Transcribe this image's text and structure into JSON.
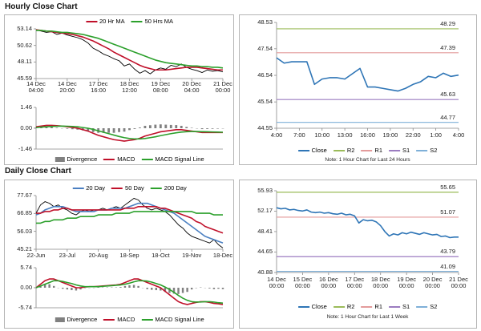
{
  "headings": [
    "Hourly Close Chart",
    "Daily Close Chart"
  ],
  "chart_data": [
    {
      "type": "line",
      "legend": "top",
      "categories": [
        "14 Dec\n04:00",
        null,
        null,
        null,
        null,
        null,
        "14 Dec\n20:00",
        null,
        null,
        null,
        null,
        null,
        "17 Dec\n16:00",
        null,
        null,
        null,
        null,
        null,
        "18 Dec\n12:00",
        null,
        null,
        null,
        null,
        null,
        "19 Dec\n08:00",
        null,
        null,
        null,
        null,
        null,
        "20 Dec\n04:00",
        null,
        null,
        null,
        null,
        null,
        "21 Dec\n00:00"
      ],
      "ylim": [
        45.59,
        53.14
      ],
      "yticks": [
        45.59,
        48.11,
        50.62,
        53.14
      ],
      "series": [
        {
          "color": "#000000",
          "values": [
            53.0,
            52.8,
            52.6,
            52.7,
            52.3,
            52.5,
            52.2,
            52.0,
            51.8,
            51.5,
            51.0,
            50.2,
            49.8,
            49.3,
            49.0,
            48.6,
            48.3,
            47.5,
            47.8,
            47.0,
            46.4,
            46.8,
            46.3,
            46.9,
            47.2,
            47.0,
            47.6,
            47.4,
            47.8,
            47.3,
            47.0,
            46.8,
            46.5,
            46.9,
            46.7,
            46.8,
            46.6
          ]
        },
        {
          "name": "20 Hr MA",
          "color": "#c0102a",
          "values": [
            53.0,
            52.9,
            52.8,
            52.7,
            52.6,
            52.5,
            52.4,
            52.3,
            52.1,
            51.9,
            51.6,
            51.3,
            50.9,
            50.5,
            50.1,
            49.6,
            49.2,
            48.8,
            48.4,
            48.0,
            47.6,
            47.3,
            47.1,
            46.9,
            46.9,
            46.9,
            47.0,
            47.1,
            47.2,
            47.3,
            47.3,
            47.3,
            47.2,
            47.1,
            47.0,
            46.9,
            46.9
          ]
        },
        {
          "name": "50 Hrs MA",
          "color": "#2ca02c",
          "values": [
            52.9,
            52.9,
            52.8,
            52.8,
            52.7,
            52.6,
            52.6,
            52.5,
            52.4,
            52.3,
            52.1,
            51.9,
            51.7,
            51.4,
            51.1,
            50.8,
            50.5,
            50.2,
            49.9,
            49.6,
            49.3,
            49.0,
            48.7,
            48.4,
            48.2,
            48.0,
            47.9,
            47.8,
            47.7,
            47.6,
            47.5,
            47.5,
            47.4,
            47.4,
            47.3,
            47.3,
            47.2
          ]
        }
      ]
    },
    {
      "type": "macd",
      "legend": "bottom",
      "ylim": [
        -1.46,
        1.46
      ],
      "yticks": [
        -1.46,
        {
          "value": 0,
          "label": "0.00"
        },
        1.46
      ],
      "series": [
        {
          "name": "Divergence",
          "color": "#808080",
          "style": "bar",
          "values": [
            0.05,
            0.07,
            0.1,
            0.08,
            0.04,
            0,
            -0.04,
            -0.07,
            -0.1,
            -0.15,
            -0.2,
            -0.27,
            -0.32,
            -0.32,
            -0.32,
            -0.32,
            -0.27,
            -0.24,
            -0.13,
            -0.05,
            0.05,
            0.17,
            0.21,
            0.25,
            0.27,
            0.25,
            0.23,
            0.22,
            0.17,
            0.09,
            0.03,
            -0.02,
            -0.06,
            -0.05,
            -0.04,
            -0.03,
            -0.02
          ]
        },
        {
          "name": "MACD",
          "color": "#c0102a",
          "values": [
            0.1,
            0.15,
            0.2,
            0.2,
            0.18,
            0.15,
            0.1,
            0.05,
            0.0,
            -0.1,
            -0.2,
            -0.35,
            -0.5,
            -0.6,
            -0.7,
            -0.8,
            -0.85,
            -0.9,
            -0.85,
            -0.8,
            -0.7,
            -0.55,
            -0.45,
            -0.35,
            -0.25,
            -0.2,
            -0.15,
            -0.1,
            -0.1,
            -0.15,
            -0.2,
            -0.25,
            -0.3,
            -0.3,
            -0.3,
            -0.3,
            -0.3
          ]
        },
        {
          "name": "MACD Signal Line",
          "color": "#2ca02c",
          "values": [
            0.05,
            0.08,
            0.1,
            0.12,
            0.14,
            0.15,
            0.14,
            0.12,
            0.1,
            0.05,
            0.0,
            -0.08,
            -0.18,
            -0.28,
            -0.38,
            -0.48,
            -0.58,
            -0.66,
            -0.72,
            -0.75,
            -0.75,
            -0.72,
            -0.66,
            -0.6,
            -0.52,
            -0.45,
            -0.38,
            -0.32,
            -0.27,
            -0.24,
            -0.23,
            -0.23,
            -0.24,
            -0.25,
            -0.26,
            -0.27,
            -0.28
          ]
        }
      ]
    },
    {
      "type": "line",
      "legend": "bottom",
      "note": "Note: 1 Hour Chart for Last 24 Hours",
      "categories": [
        "4:00",
        null,
        null,
        "7:00",
        null,
        null,
        "10:00",
        null,
        null,
        "13:00",
        null,
        null,
        "16:00",
        null,
        null,
        "19:00",
        null,
        null,
        "22:00",
        null,
        null,
        "1:00",
        null,
        null,
        "4:00"
      ],
      "ylim": [
        44.55,
        48.53
      ],
      "yticks": [
        44.55,
        45.54,
        46.54,
        47.54,
        48.53
      ],
      "series": [
        {
          "name": "Close",
          "color": "#2e75b6",
          "values": [
            47.2,
            47.0,
            47.05,
            47.05,
            47.05,
            46.2,
            46.4,
            46.45,
            46.45,
            46.4,
            46.6,
            46.8,
            46.1,
            46.1,
            46.05,
            46.0,
            45.95,
            46.05,
            46.2,
            46.3,
            46.5,
            46.45,
            46.62,
            46.5,
            46.55
          ]
        }
      ],
      "levels": [
        {
          "name": "R2",
          "color": "#9bbb59",
          "value": 48.29
        },
        {
          "name": "R1",
          "color": "#e39b9b",
          "value": 47.39
        },
        {
          "name": "S1",
          "color": "#9b7cc0",
          "value": 45.63
        },
        {
          "name": "S2",
          "color": "#7fb0d8",
          "value": 44.77
        }
      ]
    },
    {
      "type": "line",
      "legend": "top",
      "categories": [
        "22-Jun",
        null,
        null,
        null,
        null,
        null,
        null,
        "23-Jul",
        null,
        null,
        null,
        null,
        null,
        null,
        "20-Aug",
        null,
        null,
        null,
        null,
        null,
        null,
        "18-Sep",
        null,
        null,
        null,
        null,
        null,
        null,
        "18-Oct",
        null,
        null,
        null,
        null,
        null,
        null,
        "19-Nov",
        null,
        null,
        null,
        null,
        null,
        null,
        "18-Dec"
      ],
      "ylim": [
        45.21,
        77.67
      ],
      "yticks": [
        45.21,
        56.03,
        66.85,
        77.67
      ],
      "series": [
        {
          "color": "#000000",
          "values": [
            67,
            72,
            74,
            73,
            71,
            72,
            70,
            69,
            67,
            66,
            68,
            69,
            68,
            69,
            69,
            70,
            69,
            70,
            71,
            70,
            72,
            74,
            76,
            75,
            72,
            70,
            69,
            70,
            69,
            68,
            66,
            63,
            60,
            58,
            55,
            53,
            52,
            51,
            50,
            49,
            51,
            48,
            46
          ]
        },
        {
          "name": "20 Day",
          "color": "#4a7fc1",
          "values": [
            66,
            67,
            69,
            70,
            71,
            71,
            71,
            70,
            69,
            68,
            68,
            68,
            68,
            68,
            69,
            69,
            69,
            70,
            70,
            70,
            70,
            71,
            72,
            73,
            73,
            73,
            72,
            71,
            70,
            69,
            68,
            67,
            65,
            63,
            61,
            59,
            57,
            55,
            53,
            52,
            51,
            50,
            49
          ]
        },
        {
          "name": "50 Day",
          "color": "#c0102a",
          "values": [
            67,
            67,
            68,
            68,
            69,
            69,
            70,
            70,
            69,
            69,
            69,
            69,
            69,
            69,
            69,
            69,
            69,
            69,
            69,
            69,
            70,
            70,
            70,
            71,
            71,
            71,
            71,
            71,
            70,
            70,
            69,
            68,
            67,
            66,
            65,
            64,
            62,
            61,
            59,
            58,
            57,
            56,
            55
          ]
        },
        {
          "name": "200 Day",
          "color": "#2ca02c",
          "values": [
            61,
            61,
            62,
            62,
            63,
            63,
            63,
            64,
            64,
            64,
            65,
            65,
            65,
            65,
            66,
            66,
            66,
            66,
            67,
            67,
            67,
            67,
            68,
            68,
            68,
            68,
            68,
            68,
            68,
            68,
            68,
            68,
            68,
            68,
            68,
            68,
            67,
            67,
            67,
            67,
            66,
            66,
            66
          ]
        }
      ]
    },
    {
      "type": "macd",
      "legend": "bottom",
      "ylim": [
        -5.74,
        5.74
      ],
      "yticks": [
        -5.74,
        {
          "value": 0,
          "label": "0.00"
        },
        5.74
      ],
      "series": [
        {
          "name": "Divergence",
          "color": "#808080",
          "style": "bar",
          "values": [
            0,
            0.5,
            1,
            1,
            0.5,
            0,
            -0.3,
            -0.5,
            -0.7,
            -0.8,
            -0.5,
            -0.1,
            0,
            0,
            0.1,
            0.1,
            0.1,
            0.1,
            0.1,
            0.2,
            0.5,
            0.7,
            0.8,
            0.5,
            0,
            -0.4,
            -0.6,
            -0.7,
            -0.8,
            -1.2,
            -1.5,
            -1.7,
            -1.8,
            -1.5,
            -1.2,
            -0.5,
            -0.1,
            0.1,
            0,
            -0.2,
            -0.4,
            -0.3,
            -0.4
          ]
        },
        {
          "name": "MACD",
          "color": "#c0102a",
          "values": [
            0,
            1,
            2,
            2.5,
            2.5,
            2,
            1.5,
            1,
            0.5,
            0,
            0,
            0.2,
            0.3,
            0.3,
            0.4,
            0.5,
            0.6,
            0.7,
            0.8,
            1,
            1.5,
            2,
            2.5,
            2.5,
            2,
            1.5,
            1,
            0.5,
            0,
            -1,
            -2,
            -3,
            -4,
            -4.5,
            -4.8,
            -4.5,
            -4.2,
            -4,
            -4,
            -4.2,
            -4.5,
            -4.6,
            -4.8
          ]
        },
        {
          "name": "MACD Signal Line",
          "color": "#2ca02c",
          "values": [
            0,
            0.5,
            1,
            1.5,
            2,
            2,
            1.8,
            1.5,
            1.2,
            0.8,
            0.5,
            0.3,
            0.3,
            0.3,
            0.3,
            0.4,
            0.5,
            0.6,
            0.7,
            0.8,
            1,
            1.3,
            1.7,
            2,
            2,
            1.9,
            1.6,
            1.2,
            0.8,
            0.2,
            -0.5,
            -1.3,
            -2.2,
            -3,
            -3.6,
            -4,
            -4.1,
            -4.1,
            -4,
            -4,
            -4.1,
            -4.3,
            -4.4
          ]
        }
      ]
    },
    {
      "type": "line",
      "legend": "bottom",
      "note": "Note: 1 Hour Chart for Last 1 Week",
      "categories": [
        "14 Dec\n00:00",
        null,
        null,
        null,
        null,
        null,
        "15 Dec\n00:00",
        null,
        null,
        null,
        null,
        null,
        "16 Dec\n00:00",
        null,
        null,
        null,
        null,
        null,
        "17 Dec\n00:00",
        null,
        null,
        null,
        null,
        null,
        "18 Dec\n00:00",
        null,
        null,
        null,
        null,
        null,
        "19 Dec\n00:00",
        null,
        null,
        null,
        null,
        null,
        "20 Dec\n00:00",
        null,
        null,
        null,
        null,
        null,
        "21 Dec\n00:00"
      ],
      "ylim": [
        40.88,
        55.93
      ],
      "yticks": [
        40.88,
        44.65,
        48.41,
        52.17,
        55.93
      ],
      "series": [
        {
          "name": "Close",
          "color": "#2e75b6",
          "values": [
            52.8,
            52.6,
            52.7,
            52.4,
            52.5,
            52.3,
            52.2,
            52.4,
            52.0,
            51.9,
            52.0,
            51.8,
            51.9,
            51.7,
            51.6,
            51.8,
            51.5,
            51.6,
            51.3,
            50.0,
            50.6,
            50.4,
            50.5,
            50.2,
            49.5,
            48.4,
            47.6,
            48.0,
            47.8,
            48.2,
            48.0,
            48.3,
            48.1,
            47.9,
            48.2,
            48.0,
            47.8,
            47.9,
            47.5,
            47.6,
            47.3,
            47.4,
            47.4
          ]
        }
      ],
      "levels": [
        {
          "name": "R2",
          "color": "#9bbb59",
          "value": 55.65
        },
        {
          "name": "R1",
          "color": "#e39b9b",
          "value": 51.07
        },
        {
          "name": "S1",
          "color": "#9b7cc0",
          "value": 43.79
        },
        {
          "name": "S2",
          "color": "#7fb0d8",
          "value": 41.09
        }
      ]
    }
  ]
}
